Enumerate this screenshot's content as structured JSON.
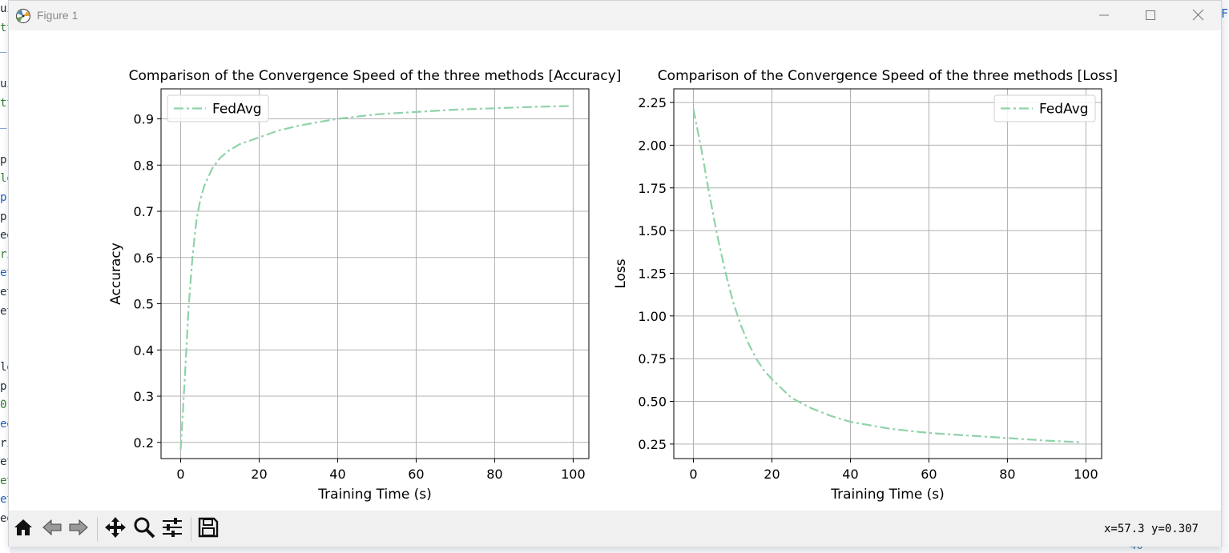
{
  "window": {
    "title": "Figure 1",
    "app_icon": "matplotlib-icon",
    "controls": [
      "minimize-icon",
      "maximize-icon",
      "close-icon"
    ]
  },
  "toolbar": {
    "buttons": [
      "home-icon",
      "back-icon",
      "forward-icon",
      "pan-icon",
      "zoom-icon",
      "configure-subplots-icon",
      "save-icon"
    ],
    "coords": "x=57.3 y=0.307"
  },
  "background": {
    "left_fragments": [
      "ui",
      "tt",
      "_",
      "",
      "ui",
      "tt",
      "_",
      "",
      "p",
      "lo",
      "p",
      "p",
      "eg",
      "ri",
      "et",
      "et",
      "et",
      "",
      "",
      "lo",
      "p",
      "0]",
      "eg",
      "ri",
      "et",
      "et",
      "et",
      "eg"
    ],
    "right_fragment": "F",
    "bottom_fragment": "40"
  },
  "chart_data": [
    {
      "type": "line",
      "title": "Comparison of the Convergence Speed of the three methods [Accuracy]",
      "xlabel": "Training Time (s)",
      "ylabel": "Accuracy",
      "xlim": [
        -5,
        104
      ],
      "ylim": [
        0.165,
        0.965
      ],
      "xticks": [
        0,
        20,
        40,
        60,
        80,
        100
      ],
      "yticks": [
        0.2,
        0.3,
        0.4,
        0.5,
        0.6,
        0.7,
        0.8,
        0.9
      ],
      "ytick_labels": [
        "0.2",
        "0.3",
        "0.4",
        "0.5",
        "0.6",
        "0.7",
        "0.8",
        "0.9"
      ],
      "grid": true,
      "legend": "upper-left",
      "series": [
        {
          "name": "FedAvg",
          "color": "#8fd3a8",
          "linestyle": "dashdot",
          "x": [
            0,
            1,
            2,
            3,
            4,
            5,
            6,
            8,
            10,
            12,
            15,
            20,
            25,
            30,
            35,
            40,
            45,
            50,
            60,
            70,
            80,
            90,
            99
          ],
          "y": [
            0.185,
            0.33,
            0.49,
            0.6,
            0.68,
            0.725,
            0.755,
            0.792,
            0.815,
            0.83,
            0.845,
            0.86,
            0.875,
            0.885,
            0.893,
            0.9,
            0.905,
            0.91,
            0.915,
            0.92,
            0.923,
            0.926,
            0.928
          ]
        }
      ]
    },
    {
      "type": "line",
      "title": "Comparison of the Convergence Speed of the three methods [Loss]",
      "xlabel": "Training Time (s)",
      "ylabel": "Loss",
      "xlim": [
        -5,
        104
      ],
      "ylim": [
        0.165,
        2.33
      ],
      "xticks": [
        0,
        20,
        40,
        60,
        80,
        100
      ],
      "yticks": [
        0.25,
        0.5,
        0.75,
        1.0,
        1.25,
        1.5,
        1.75,
        2.0,
        2.25
      ],
      "ytick_labels": [
        "0.25",
        "0.50",
        "0.75",
        "1.00",
        "1.25",
        "1.50",
        "1.75",
        "2.00",
        "2.25"
      ],
      "grid": true,
      "legend": "upper-right",
      "series": [
        {
          "name": "FedAvg",
          "color": "#8fd3a8",
          "linestyle": "dashdot",
          "x": [
            0,
            2,
            4,
            6,
            8,
            10,
            12,
            14,
            16,
            18,
            20,
            25,
            30,
            35,
            40,
            50,
            60,
            70,
            80,
            90,
            99
          ],
          "y": [
            2.21,
            1.98,
            1.72,
            1.48,
            1.27,
            1.09,
            0.95,
            0.84,
            0.75,
            0.68,
            0.63,
            0.52,
            0.46,
            0.415,
            0.38,
            0.34,
            0.315,
            0.3,
            0.285,
            0.27,
            0.26
          ]
        }
      ]
    }
  ]
}
